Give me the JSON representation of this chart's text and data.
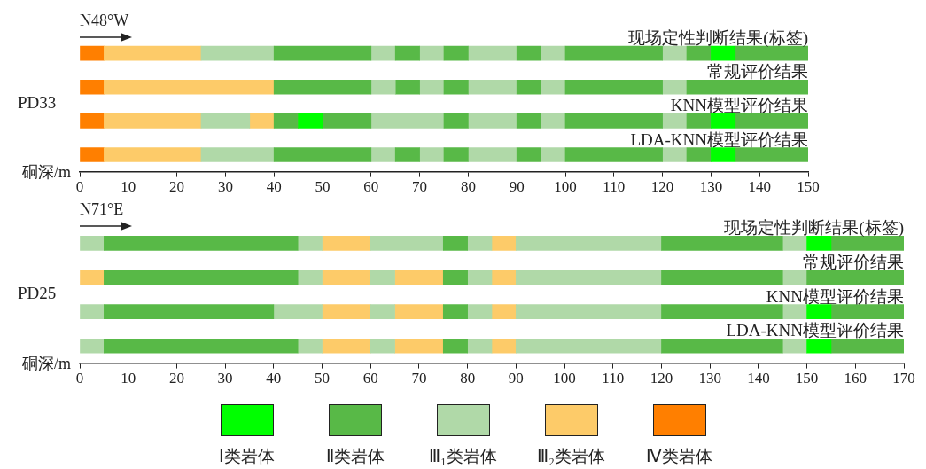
{
  "chart_data": [
    {
      "type": "bar",
      "orientation": "horizontal",
      "ylabel": "PD33",
      "xlabel": "硐深/m",
      "annotations": [
        "N48°W"
      ],
      "legend": "bottom",
      "categories": [
        "现场定性判断结果(标签)",
        "常规评价结果",
        "KNN模型评价结果",
        "LDA-KNN模型评价结果"
      ],
      "xlim": [
        0,
        150
      ],
      "xticks": [
        0,
        10,
        20,
        30,
        40,
        50,
        60,
        70,
        80,
        90,
        100,
        110,
        120,
        130,
        140,
        150
      ],
      "series": [
        {
          "name": "Ⅰ类岩体",
          "color": "#00ff00",
          "base": [
            130,
            null,
            45,
            130
          ],
          "values": [
            5,
            null,
            5,
            5
          ]
        },
        {
          "name": "Ⅱ类岩体",
          "color": "#58b947",
          "base": [
            40,
            40,
            40,
            40
          ],
          "values": [
            20,
            20,
            5,
            20
          ]
        },
        {
          "name": "Ⅲ₁类岩体",
          "color": "#b0d9a8",
          "base": [
            25,
            60,
            25,
            25
          ],
          "values": [
            15,
            5,
            10,
            15
          ]
        },
        {
          "name": "Ⅲ₂类岩体",
          "color": "#fdcb69",
          "base": [
            5,
            5,
            5,
            5
          ],
          "values": [
            20,
            35,
            20,
            20
          ]
        },
        {
          "name": "Ⅳ类岩体",
          "color": "#ff7f00",
          "base": [
            0,
            0,
            0,
            0
          ],
          "values": [
            5,
            5,
            5,
            5
          ]
        },
        {
          "color": "#00ff00",
          "base": [
            null,
            null,
            130,
            null
          ],
          "values": [
            null,
            null,
            5,
            null
          ]
        },
        {
          "color": "#58b947",
          "base": [
            65,
            65,
            50,
            65
          ],
          "values": [
            5,
            5,
            10,
            5
          ]
        },
        {
          "color": "#58b947",
          "base": [
            75,
            75,
            75,
            75
          ],
          "values": [
            5,
            5,
            5,
            5
          ]
        },
        {
          "color": "#58b947",
          "base": [
            90,
            90,
            90,
            90
          ],
          "values": [
            5,
            5,
            5,
            5
          ]
        },
        {
          "color": "#58b947",
          "base": [
            100,
            100,
            100,
            100
          ],
          "values": [
            20,
            20,
            20,
            20
          ]
        },
        {
          "color": "#58b947",
          "base": [
            125,
            125,
            125,
            125
          ],
          "values": [
            5,
            25,
            5,
            5
          ]
        },
        {
          "color": "#58b947",
          "base": [
            135,
            null,
            135,
            135
          ],
          "values": [
            15,
            null,
            15,
            15
          ]
        },
        {
          "color": "#b0d9a8",
          "base": [
            60,
            70,
            60,
            60
          ],
          "values": [
            5,
            5,
            15,
            5
          ]
        },
        {
          "color": "#b0d9a8",
          "base": [
            70,
            80,
            80,
            70
          ],
          "values": [
            5,
            10,
            10,
            5
          ]
        },
        {
          "color": "#b0d9a8",
          "base": [
            80,
            95,
            95,
            80
          ],
          "values": [
            10,
            5,
            5,
            10
          ]
        },
        {
          "color": "#b0d9a8",
          "base": [
            95,
            120,
            120,
            95
          ],
          "values": [
            5,
            5,
            5,
            5
          ]
        },
        {
          "color": "#b0d9a8",
          "base": [
            120,
            null,
            null,
            120
          ],
          "values": [
            5,
            null,
            null,
            5
          ]
        },
        {
          "color": "#fdcb69",
          "base": [
            null,
            null,
            35,
            null
          ],
          "values": [
            null,
            null,
            5,
            null
          ]
        }
      ]
    },
    {
      "type": "bar",
      "orientation": "horizontal",
      "ylabel": "PD25",
      "xlabel": "硐深/m",
      "annotations": [
        "N71°E"
      ],
      "categories": [
        "现场定性判断结果(标签)",
        "常规评价结果",
        "KNN模型评价结果",
        "LDA-KNN模型评价结果"
      ],
      "xlim": [
        0,
        170
      ],
      "xticks": [
        0,
        10,
        20,
        30,
        40,
        50,
        60,
        70,
        80,
        90,
        100,
        110,
        120,
        130,
        140,
        150,
        160,
        170
      ],
      "series": [
        {
          "color": "#00ff00",
          "base": [
            150,
            null,
            150,
            150
          ],
          "values": [
            5,
            null,
            5,
            5
          ]
        },
        {
          "color": "#58b947",
          "base": [
            5,
            5,
            5,
            5
          ],
          "values": [
            40,
            40,
            35,
            40
          ]
        },
        {
          "color": "#58b947",
          "base": [
            75,
            75,
            75,
            75
          ],
          "values": [
            5,
            5,
            5,
            5
          ]
        },
        {
          "color": "#58b947",
          "base": [
            120,
            120,
            120,
            120
          ],
          "values": [
            25,
            25,
            25,
            25
          ]
        },
        {
          "color": "#58b947",
          "base": [
            155,
            150,
            155,
            155
          ],
          "values": [
            15,
            20,
            15,
            15
          ]
        },
        {
          "color": "#b0d9a8",
          "base": [
            0,
            45,
            0,
            0
          ],
          "values": [
            5,
            5,
            5,
            5
          ]
        },
        {
          "color": "#b0d9a8",
          "base": [
            45,
            60,
            40,
            45
          ],
          "values": [
            5,
            5,
            10,
            5
          ]
        },
        {
          "color": "#b0d9a8",
          "base": [
            60,
            80,
            60,
            60
          ],
          "values": [
            15,
            5,
            5,
            5
          ]
        },
        {
          "color": "#b0d9a8",
          "base": [
            80,
            90,
            80,
            80
          ],
          "values": [
            5,
            30,
            5,
            5
          ]
        },
        {
          "color": "#b0d9a8",
          "base": [
            90,
            145,
            90,
            90
          ],
          "values": [
            30,
            5,
            30,
            30
          ]
        },
        {
          "color": "#b0d9a8",
          "base": [
            145,
            null,
            145,
            145
          ],
          "values": [
            5,
            null,
            5,
            5
          ]
        },
        {
          "color": "#fdcb69",
          "base": [
            50,
            0,
            50,
            50
          ],
          "values": [
            10,
            5,
            10,
            10
          ]
        },
        {
          "color": "#fdcb69",
          "base": [
            85,
            50,
            65,
            65
          ],
          "values": [
            5,
            10,
            10,
            10
          ]
        },
        {
          "color": "#fdcb69",
          "base": [
            null,
            65,
            85,
            85
          ],
          "values": [
            null,
            10,
            5,
            5
          ]
        },
        {
          "color": "#fdcb69",
          "base": [
            null,
            85,
            null,
            null
          ],
          "values": [
            null,
            5,
            null,
            null
          ]
        }
      ]
    }
  ]
}
